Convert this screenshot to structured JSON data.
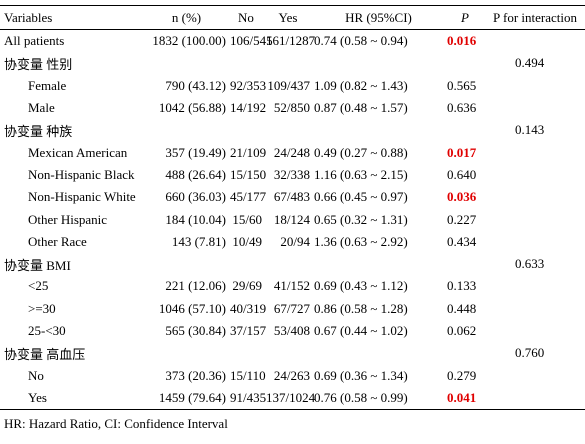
{
  "table": {
    "header": [
      "Variables",
      "n (%)",
      "No",
      "Yes",
      "HR (95%CI)",
      "P",
      "P for interaction"
    ],
    "rows": [
      {
        "label": "All patients",
        "n": "1832 (100.00)",
        "no": "106/545",
        "yes": "161/1287",
        "hr": "0.74 (0.58 ~ 0.94)",
        "p": "0.016"
      },
      {
        "label": "协变量 性别",
        "p_interaction": "0.494"
      },
      {
        "label": "Female",
        "n": "790 (43.12)",
        "no": "92/353",
        "yes": "109/437",
        "hr": "1.09 (0.82 ~ 1.43)",
        "p": "0.565"
      },
      {
        "label": "Male",
        "n": "1042 (56.88)",
        "no": "14/192",
        "yes": "52/850",
        "hr": "0.87 (0.48 ~ 1.57)",
        "p": "0.636"
      },
      {
        "label": "协变量 种族",
        "p_interaction": "0.143"
      },
      {
        "label": "Mexican American",
        "n": "357 (19.49)",
        "no": "21/109",
        "yes": "24/248",
        "hr": "0.49 (0.27 ~ 0.88)",
        "p": "0.017"
      },
      {
        "label": "Non-Hispanic Black",
        "n": "488 (26.64)",
        "no": "15/150",
        "yes": "32/338",
        "hr": "1.16 (0.63 ~ 2.15)",
        "p": "0.640"
      },
      {
        "label": "Non-Hispanic White",
        "n": "660 (36.03)",
        "no": "45/177",
        "yes": "67/483",
        "hr": "0.66 (0.45 ~ 0.97)",
        "p": "0.036"
      },
      {
        "label": "Other Hispanic",
        "n": "184 (10.04)",
        "no": "15/60",
        "yes": "18/124",
        "hr": "0.65 (0.32 ~ 1.31)",
        "p": "0.227"
      },
      {
        "label": "Other Race",
        "n": "143 (7.81)",
        "no": "10/49",
        "yes": "20/94",
        "hr": "1.36 (0.63 ~ 2.92)",
        "p": "0.434"
      },
      {
        "label": "协变量 BMI",
        "p_interaction": "0.633"
      },
      {
        "label": "<25",
        "n": "221 (12.06)",
        "no": "29/69",
        "yes": "41/152",
        "hr": "0.69 (0.43 ~ 1.12)",
        "p": "0.133"
      },
      {
        "label": ">=30",
        "n": "1046 (57.10)",
        "no": "40/319",
        "yes": "67/727",
        "hr": "0.86 (0.58 ~ 1.28)",
        "p": "0.448"
      },
      {
        "label": "25-<30",
        "n": "565 (30.84)",
        "no": "37/157",
        "yes": "53/408",
        "hr": "0.67 (0.44 ~ 1.02)",
        "p": "0.062"
      },
      {
        "label": "协变量 高血压",
        "p_interaction": "0.760"
      },
      {
        "label": "No",
        "n": "373 (20.36)",
        "no": "15/110",
        "yes": "24/263",
        "hr": "0.69 (0.36 ~ 1.34)",
        "p": "0.279"
      },
      {
        "label": "Yes",
        "n": "1459 (79.64)",
        "no": "91/435",
        "yes": "137/1024",
        "hr": "0.76 (0.58 ~ 0.99)",
        "p": "0.041"
      }
    ],
    "footnote": "HR: Hazard Ratio, CI: Confidence Interval"
  }
}
